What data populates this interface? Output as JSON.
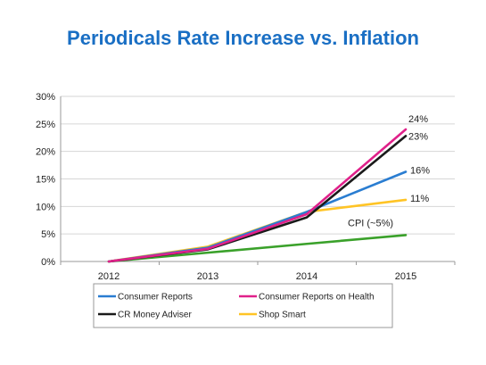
{
  "title": "Periodicals Rate Increase vs. Inflation",
  "chart_data": {
    "type": "line",
    "x": [
      "2012",
      "2013",
      "2014",
      "2015"
    ],
    "ylim": [
      0,
      30
    ],
    "yticks": [
      "0%",
      "5%",
      "10%",
      "15%",
      "20%",
      "25%",
      "30%"
    ],
    "ytick_values": [
      0,
      5,
      10,
      15,
      20,
      25,
      30
    ],
    "grid": "horizontal",
    "legend_position": "bottom",
    "series": [
      {
        "name": "Consumer Reports",
        "color": "#2a7dd1",
        "values": [
          0,
          2.5,
          9,
          16.3
        ],
        "end_label": "16%"
      },
      {
        "name": "Consumer Reports on Health",
        "color": "#e0218a",
        "values": [
          0,
          2.3,
          8.6,
          24
        ],
        "end_label": "24%"
      },
      {
        "name": "CR Money Adviser",
        "color": "#1a1a1a",
        "values": [
          0,
          2.2,
          8,
          22.8
        ],
        "end_label": "23%"
      },
      {
        "name": "Shop Smart",
        "color": "#ffc425",
        "values": [
          0,
          2.7,
          9,
          11.2
        ],
        "end_label": "11%"
      },
      {
        "name": "",
        "color": "#3aa12a",
        "values": [
          0,
          1.6,
          3.2,
          4.8
        ],
        "end_label": "CPI (~5%)"
      }
    ]
  }
}
